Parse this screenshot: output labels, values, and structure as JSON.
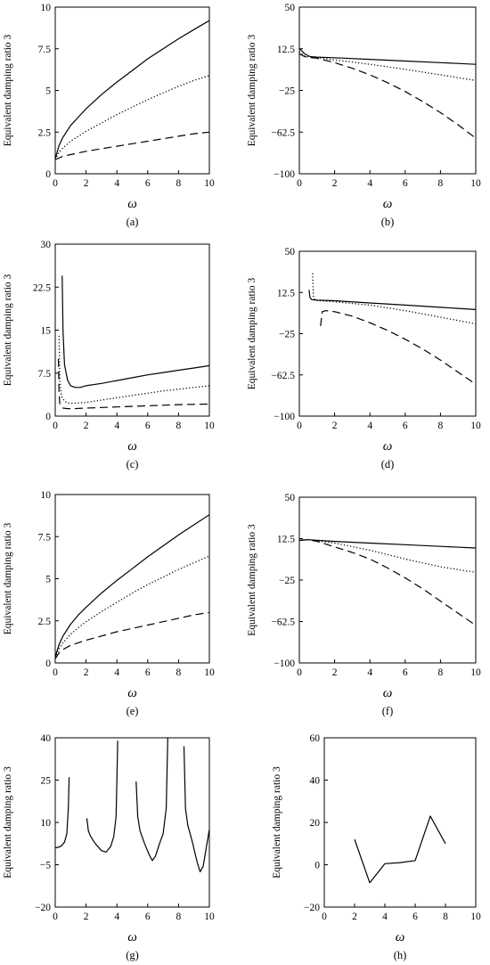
{
  "chart_data": [
    {
      "id": "a",
      "caption": "(a)",
      "type": "line",
      "xlabel": "ω",
      "ylabel": "Equivalent damping ratio 3",
      "xlim": [
        0,
        10
      ],
      "ylim": [
        0,
        10
      ],
      "xticks": [
        0,
        2,
        4,
        6,
        8,
        10
      ],
      "xtick_labels": [
        "0",
        "2",
        "4",
        "6",
        "8",
        "10"
      ],
      "yticks": [
        0,
        2.5,
        5,
        7.5,
        10
      ],
      "ytick_labels": [
        "0",
        "2.5",
        "5",
        "7.5",
        "10"
      ],
      "series": [
        {
          "style": "solid",
          "x": [
            0,
            0.25,
            0.5,
            1,
            1.5,
            2,
            3,
            4,
            5,
            6,
            7,
            8,
            9,
            10
          ],
          "y": [
            0.9,
            1.7,
            2.2,
            2.9,
            3.4,
            3.9,
            4.75,
            5.5,
            6.2,
            6.9,
            7.5,
            8.1,
            8.65,
            9.2
          ]
        },
        {
          "style": "dotted",
          "x": [
            0,
            0.25,
            0.5,
            1,
            1.5,
            2,
            3,
            4,
            5,
            6,
            7,
            8,
            9,
            10
          ],
          "y": [
            0.85,
            1.3,
            1.55,
            1.95,
            2.25,
            2.55,
            3.05,
            3.55,
            4.0,
            4.45,
            4.85,
            5.25,
            5.6,
            5.9
          ]
        },
        {
          "style": "dashed",
          "x": [
            0,
            0.5,
            1,
            2,
            3,
            4,
            5,
            6,
            7,
            8,
            9,
            10
          ],
          "y": [
            0.85,
            1.05,
            1.15,
            1.35,
            1.5,
            1.65,
            1.8,
            1.95,
            2.1,
            2.25,
            2.4,
            2.5
          ]
        }
      ]
    },
    {
      "id": "b",
      "caption": "(b)",
      "type": "line",
      "xlabel": "ω",
      "ylabel": "Equivalent damping ratio 3",
      "xlim": [
        0,
        10
      ],
      "ylim": [
        -100,
        50
      ],
      "xticks": [
        0,
        2,
        4,
        6,
        8,
        10
      ],
      "xtick_labels": [
        "0",
        "2",
        "4",
        "6",
        "8",
        "10"
      ],
      "yticks": [
        -100,
        -62.5,
        -25,
        12.5,
        50
      ],
      "ytick_labels": [
        "−100",
        "−62.5",
        "−25",
        "12.5",
        "50"
      ],
      "series": [
        {
          "style": "solid",
          "x": [
            0,
            0.3,
            0.6,
            1,
            2,
            4,
            6,
            8,
            10
          ],
          "y": [
            13,
            8,
            5.5,
            5,
            4.4,
            3,
            1.5,
            0,
            -1.5
          ]
        },
        {
          "style": "dotted",
          "x": [
            0,
            0.3,
            0.6,
            1,
            2,
            4,
            6,
            8,
            10
          ],
          "y": [
            10,
            6,
            5,
            4.5,
            2.5,
            -1.5,
            -6,
            -11,
            -16
          ]
        },
        {
          "style": "dashed",
          "x": [
            0,
            0.3,
            0.6,
            1,
            2,
            3,
            4,
            5,
            6,
            7,
            8,
            9,
            10
          ],
          "y": [
            8,
            5.5,
            4.5,
            4,
            0,
            -5,
            -11,
            -18,
            -26,
            -35,
            -45,
            -56,
            -68
          ]
        }
      ]
    },
    {
      "id": "c",
      "caption": "(c)",
      "type": "line",
      "xlabel": "ω",
      "ylabel": "Equivalent damping ratio 3",
      "xlim": [
        0,
        10
      ],
      "ylim": [
        0,
        30
      ],
      "xticks": [
        0,
        2,
        4,
        6,
        8,
        10
      ],
      "xtick_labels": [
        "0",
        "2",
        "4",
        "6",
        "8",
        "10"
      ],
      "yticks": [
        0,
        7.5,
        15,
        22.5,
        30
      ],
      "ytick_labels": [
        "0",
        "7.5",
        "15",
        "22.5",
        "30"
      ],
      "series": [
        {
          "style": "solid",
          "x": [
            0.45,
            0.5,
            0.6,
            0.8,
            1.0,
            1.3,
            1.6,
            2,
            3,
            4,
            5,
            6,
            7,
            8,
            9,
            10
          ],
          "y": [
            24.5,
            15,
            9,
            6.3,
            5.3,
            5.0,
            5.0,
            5.3,
            5.7,
            6.2,
            6.7,
            7.2,
            7.6,
            8.0,
            8.4,
            8.8
          ]
        },
        {
          "style": "dotted",
          "x": [
            0.25,
            0.3,
            0.4,
            0.6,
            0.8,
            1.0,
            1.5,
            2,
            3,
            4,
            5,
            6,
            7,
            8,
            9,
            10
          ],
          "y": [
            14,
            6,
            3.5,
            2.6,
            2.3,
            2.2,
            2.3,
            2.4,
            2.8,
            3.2,
            3.6,
            4.0,
            4.4,
            4.7,
            5.0,
            5.3
          ]
        },
        {
          "style": "dashed",
          "x": [
            0.2,
            0.25,
            0.3,
            0.5,
            0.8,
            1.2,
            2,
            4,
            6,
            8,
            10
          ],
          "y": [
            10,
            4,
            2,
            1.4,
            1.3,
            1.3,
            1.4,
            1.6,
            1.8,
            2.0,
            2.1
          ]
        }
      ]
    },
    {
      "id": "d",
      "caption": "(d)",
      "type": "line",
      "xlabel": "ω",
      "ylabel": "Equivalent damping ratio 3",
      "xlim": [
        0,
        10
      ],
      "ylim": [
        -100,
        50
      ],
      "xticks": [
        0,
        2,
        4,
        6,
        8,
        10
      ],
      "xtick_labels": [
        "0",
        "2",
        "4",
        "6",
        "8",
        "10"
      ],
      "yticks": [
        -100,
        -62.5,
        -25,
        12.5,
        50
      ],
      "ytick_labels": [
        "−100",
        "−62.5",
        "−25",
        "12.5",
        "50"
      ],
      "series": [
        {
          "style": "solid",
          "x": [
            0.55,
            0.6,
            0.7,
            1,
            2,
            4,
            6,
            8,
            10
          ],
          "y": [
            15,
            8,
            6,
            5.5,
            5,
            3,
            1,
            -1,
            -3
          ]
        },
        {
          "style": "dotted",
          "x": [
            0.75,
            0.8,
            0.9,
            1.2,
            2,
            4,
            6,
            8,
            10
          ],
          "y": [
            30,
            8,
            5.5,
            5,
            4,
            1,
            -4,
            -10,
            -16
          ]
        },
        {
          "style": "dashed",
          "x": [
            1.2,
            1.3,
            1.5,
            2,
            3,
            4,
            5,
            6,
            7,
            8,
            9,
            10
          ],
          "y": [
            -18,
            -5,
            -4,
            -5,
            -9,
            -15,
            -22,
            -30,
            -39,
            -49,
            -60,
            -71
          ]
        }
      ]
    },
    {
      "id": "e",
      "caption": "(e)",
      "type": "line",
      "xlabel": "ω",
      "ylabel": "Equivalent damping ratio 3",
      "xlim": [
        0,
        10
      ],
      "ylim": [
        0,
        10
      ],
      "xticks": [
        0,
        2,
        4,
        6,
        8,
        10
      ],
      "xtick_labels": [
        "0",
        "2",
        "4",
        "6",
        "8",
        "10"
      ],
      "yticks": [
        0,
        2.5,
        5,
        7.5,
        10
      ],
      "ytick_labels": [
        "0",
        "2.5",
        "5",
        "7.5",
        "10"
      ],
      "series": [
        {
          "style": "solid",
          "x": [
            0,
            0.25,
            0.5,
            1,
            1.5,
            2,
            3,
            4,
            5,
            6,
            7,
            8,
            9,
            10
          ],
          "y": [
            0.35,
            1.1,
            1.6,
            2.3,
            2.85,
            3.3,
            4.15,
            4.9,
            5.6,
            6.3,
            6.95,
            7.6,
            8.2,
            8.8
          ]
        },
        {
          "style": "dotted",
          "x": [
            0,
            0.25,
            0.5,
            1,
            1.5,
            2,
            3,
            4,
            5,
            6,
            7,
            8,
            9,
            10
          ],
          "y": [
            0.3,
            0.85,
            1.2,
            1.7,
            2.1,
            2.45,
            3.05,
            3.6,
            4.15,
            4.65,
            5.1,
            5.55,
            5.95,
            6.35
          ]
        },
        {
          "style": "dashed",
          "x": [
            0,
            0.25,
            0.5,
            1,
            2,
            3,
            4,
            5,
            6,
            7,
            8,
            9,
            10
          ],
          "y": [
            0.25,
            0.6,
            0.8,
            1.05,
            1.35,
            1.6,
            1.85,
            2.05,
            2.25,
            2.45,
            2.65,
            2.85,
            3.0
          ]
        }
      ]
    },
    {
      "id": "f",
      "caption": "(f)",
      "type": "line",
      "xlabel": "ω",
      "ylabel": "Equivalent damping ratio 3",
      "xlim": [
        0,
        10
      ],
      "ylim": [
        -100,
        50
      ],
      "xticks": [
        0,
        2,
        4,
        6,
        8,
        10
      ],
      "xtick_labels": [
        "0",
        "2",
        "4",
        "6",
        "8",
        "10"
      ],
      "yticks": [
        -100,
        -62.5,
        -25,
        12.5,
        50
      ],
      "ytick_labels": [
        "−100",
        "−62.5",
        "−25",
        "12.5",
        "50"
      ],
      "series": [
        {
          "style": "solid",
          "x": [
            0,
            0.5,
            1,
            2,
            4,
            6,
            8,
            10
          ],
          "y": [
            11,
            11.5,
            11,
            10,
            8.5,
            7,
            5.5,
            4
          ]
        },
        {
          "style": "dotted",
          "x": [
            0,
            0.5,
            1,
            2,
            4,
            6,
            8,
            10
          ],
          "y": [
            11,
            11.5,
            10.5,
            8.5,
            2,
            -6,
            -13,
            -18
          ]
        },
        {
          "style": "dashed",
          "x": [
            0,
            0.5,
            1,
            2,
            3,
            4,
            5,
            6,
            7,
            8,
            9,
            10
          ],
          "y": [
            11,
            11.5,
            10,
            5,
            0,
            -6,
            -14,
            -23,
            -33,
            -44,
            -55,
            -66
          ]
        }
      ]
    },
    {
      "id": "g",
      "caption": "(g)",
      "type": "line",
      "xlabel": "ω",
      "ylabel": "Equivalent damping ratio 3",
      "xlim": [
        0,
        10
      ],
      "ylim": [
        -20,
        40
      ],
      "xticks": [
        0,
        2,
        4,
        6,
        8,
        10
      ],
      "xtick_labels": [
        "0",
        "2",
        "4",
        "6",
        "8",
        "10"
      ],
      "yticks": [
        -20,
        -5,
        10,
        25,
        40
      ],
      "ytick_labels": [
        "−20",
        "−5",
        "10",
        "25",
        "40"
      ],
      "series": [
        {
          "style": "solid",
          "x": [
            0,
            0.2,
            0.4,
            0.6,
            0.75,
            0.85,
            0.9
          ],
          "y": [
            1,
            1.2,
            1.7,
            3,
            6,
            15,
            26
          ]
        },
        {
          "style": "solid",
          "x": [
            2.05,
            2.15,
            2.3,
            2.6,
            3.0,
            3.3,
            3.6,
            3.8,
            3.95,
            4.0,
            4.05
          ],
          "y": [
            11.5,
            7,
            5,
            2.5,
            0,
            -0.5,
            1.5,
            5,
            12,
            25,
            39
          ]
        },
        {
          "style": "solid",
          "x": [
            5.25,
            5.35,
            5.5,
            5.8,
            6.1,
            6.3,
            6.5,
            6.8,
            7.0,
            7.2,
            7.3
          ],
          "y": [
            24.5,
            12,
            7,
            2.5,
            -1.5,
            -3.5,
            -2,
            3,
            6,
            15,
            40
          ]
        },
        {
          "style": "solid",
          "x": [
            8.35,
            8.45,
            8.6,
            8.9,
            9.2,
            9.4,
            9.6,
            9.8,
            10
          ],
          "y": [
            37,
            15,
            9,
            3,
            -4,
            -7.5,
            -5.5,
            1,
            7.5
          ]
        }
      ]
    },
    {
      "id": "h",
      "caption": "(h)",
      "type": "line",
      "xlabel": "ω",
      "ylabel": "Equivalent damping ratio 3",
      "xlim": [
        0,
        10
      ],
      "ylim": [
        -20,
        60
      ],
      "xticks": [
        0,
        2,
        4,
        6,
        8,
        10
      ],
      "xtick_labels": [
        "0",
        "2",
        "4",
        "6",
        "8",
        "10"
      ],
      "yticks": [
        -20,
        0,
        20,
        40,
        60
      ],
      "ytick_labels": [
        "−20",
        "0",
        "20",
        "40",
        "60"
      ],
      "series": [
        {
          "style": "solid",
          "x": [
            2,
            3,
            4,
            5,
            6,
            7,
            8
          ],
          "y": [
            12,
            -8.5,
            0.5,
            1,
            2,
            23,
            10
          ]
        }
      ]
    }
  ]
}
